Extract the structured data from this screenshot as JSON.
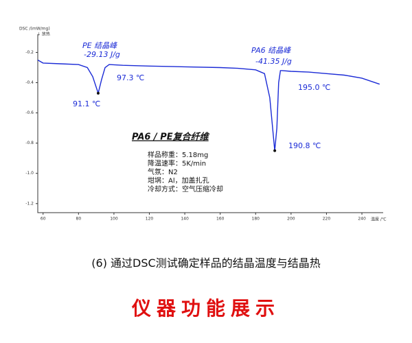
{
  "chart_data": {
    "type": "line",
    "y_label": "DSC /(mW/mg)",
    "y_note": "↓ 放热",
    "x_label": "温度 /℃",
    "x": [
      57,
      60,
      70,
      80,
      85,
      88,
      91.1,
      93,
      95,
      97.3,
      105,
      120,
      140,
      160,
      170,
      180,
      185,
      188,
      190.8,
      192,
      193,
      194,
      195,
      200,
      210,
      220,
      230,
      240,
      250
    ],
    "series": [
      {
        "color": "#1a2ad6",
        "values": [
          -0.25,
          -0.27,
          -0.275,
          -0.28,
          -0.3,
          -0.36,
          -0.47,
          -0.38,
          -0.3,
          -0.28,
          -0.285,
          -0.29,
          -0.295,
          -0.3,
          -0.305,
          -0.315,
          -0.34,
          -0.5,
          -0.85,
          -0.7,
          -0.4,
          -0.32,
          -0.32,
          -0.325,
          -0.33,
          -0.34,
          -0.35,
          -0.37,
          -0.41
        ]
      }
    ],
    "xlim": [
      57,
      252
    ],
    "ylim": [
      -1.26,
      -0.08
    ],
    "xticks": [
      60,
      80,
      100,
      120,
      140,
      160,
      180,
      200,
      220,
      240
    ],
    "yticks": [
      -0.2,
      -0.4,
      -0.6,
      -0.8,
      {
        "value": -1,
        "label": "-1.0"
      },
      -1.2
    ],
    "annotations": [
      "PE 结晶峰",
      "-29.13 J/g",
      "97.3 ℃",
      "91.1 ℃",
      "PA6 结晶峰",
      "-41.35 J/g",
      "195.0 ℃",
      "190.8 ℃"
    ],
    "box_title": "PA6 / PE复合纤维",
    "box_lines": [
      "样品称重：5.18mg",
      "降温速率：5K/min",
      "气氛：N2",
      "坩埚：Al，加盖扎孔",
      "冷却方式：空气压缩冷却"
    ]
  },
  "caption": "(6) 通过DSC测试确定样品的结晶温度与结晶热",
  "heading": "仪器功能展示"
}
